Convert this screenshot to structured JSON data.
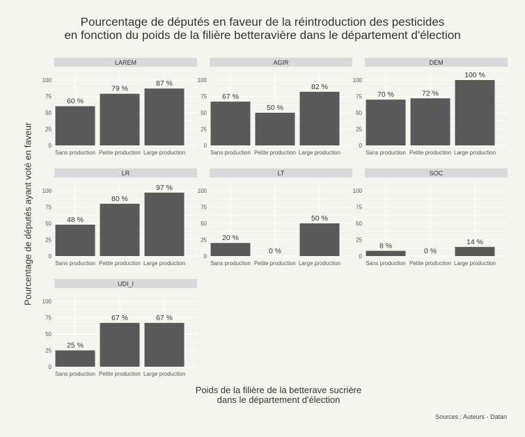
{
  "title_line1": "Pourcentage de députés en faveur de la réintroduction des pesticides",
  "title_line2": "en fonction du poids de la filière betteravière dans le département d'élection",
  "ylabel": "Pourcentage de députés ayant voté en faveur",
  "xlabel_line1": "Poids de la filière de la betterave sucrière",
  "xlabel_line2": "dans le département d'élection",
  "caption": "Sources : Auteurs - Datan",
  "colors": {
    "bar": "#595959",
    "strip": "#d9d9d9",
    "panel": "#f5f5f0",
    "grid": "#ffffff"
  },
  "chart_data": {
    "type": "bar",
    "categories": [
      "Sans production",
      "Petite production",
      "Large production"
    ],
    "ylim": [
      0,
      100
    ],
    "yticks": [
      0,
      25,
      50,
      75,
      100
    ],
    "value_suffix": "  %",
    "facets": [
      {
        "name": "LAREM",
        "values": [
          60,
          79,
          87
        ]
      },
      {
        "name": "AGIR",
        "values": [
          67,
          50,
          82
        ]
      },
      {
        "name": "DEM",
        "values": [
          70,
          72,
          100
        ]
      },
      {
        "name": "LR",
        "values": [
          48,
          80,
          97
        ]
      },
      {
        "name": "LT",
        "values": [
          20,
          0,
          50
        ]
      },
      {
        "name": "SOC",
        "values": [
          8,
          0,
          14
        ]
      },
      {
        "name": "UDI_I",
        "values": [
          25,
          67,
          67
        ]
      }
    ]
  }
}
